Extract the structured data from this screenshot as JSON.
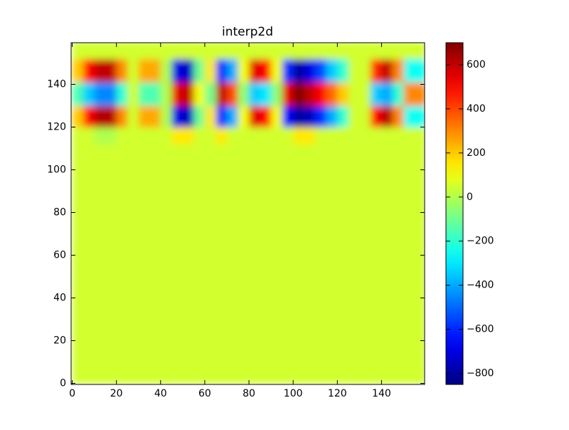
{
  "chart_data": {
    "type": "heatmap",
    "title": "interp2d",
    "colormap": "jet",
    "x_edges": [
      0,
      5,
      10,
      15,
      20,
      25,
      30,
      35,
      40,
      45,
      50,
      55,
      60,
      65,
      70,
      75,
      80,
      85,
      90,
      95,
      100,
      105,
      110,
      115,
      120,
      125,
      130,
      135,
      140,
      145,
      150,
      155,
      160
    ],
    "y_edges": [
      0,
      112,
      120,
      130,
      141,
      152,
      160
    ],
    "z": [
      [
        50,
        50,
        50,
        50,
        50,
        50,
        50,
        50,
        50,
        50,
        50,
        50,
        50,
        50,
        50,
        50,
        50,
        50,
        50,
        50,
        50,
        50,
        50,
        50,
        50,
        50,
        50,
        50,
        50,
        50,
        50,
        50
      ],
      [
        50,
        50,
        0,
        0,
        50,
        50,
        50,
        50,
        50,
        150,
        150,
        50,
        50,
        150,
        50,
        50,
        50,
        50,
        50,
        50,
        150,
        150,
        50,
        50,
        50,
        50,
        50,
        50,
        50,
        50,
        50,
        50
      ],
      [
        200,
        500,
        620,
        620,
        300,
        50,
        250,
        250,
        0,
        -700,
        -750,
        -100,
        150,
        -600,
        -400,
        100,
        550,
        500,
        100,
        -650,
        -800,
        -750,
        -600,
        -400,
        -200,
        50,
        50,
        500,
        620,
        300,
        -250,
        -250
      ],
      [
        -150,
        -350,
        -450,
        -450,
        -200,
        50,
        -150,
        -150,
        0,
        550,
        600,
        100,
        -100,
        600,
        400,
        -50,
        -350,
        -300,
        -50,
        550,
        700,
        600,
        500,
        350,
        200,
        50,
        50,
        -350,
        -400,
        -200,
        300,
        300
      ],
      [
        200,
        500,
        600,
        600,
        300,
        50,
        250,
        250,
        0,
        -700,
        -750,
        -100,
        150,
        -600,
        -400,
        100,
        550,
        500,
        100,
        -600,
        -800,
        -700,
        -550,
        -350,
        -200,
        50,
        50,
        450,
        600,
        300,
        -250,
        -250
      ],
      [
        50,
        50,
        50,
        50,
        50,
        50,
        50,
        50,
        50,
        50,
        50,
        50,
        50,
        50,
        50,
        50,
        50,
        50,
        50,
        50,
        50,
        50,
        50,
        50,
        50,
        50,
        50,
        50,
        50,
        50,
        50,
        50
      ]
    ],
    "xlim": [
      -0.5,
      159.5
    ],
    "ylim": [
      -0.5,
      159.5
    ],
    "xticks": [
      0,
      20,
      40,
      60,
      80,
      100,
      120,
      140
    ],
    "yticks": [
      0,
      20,
      40,
      60,
      80,
      100,
      120,
      140
    ],
    "vlim": [
      -850,
      700
    ],
    "colorbar_ticks": [
      {
        "value": -800,
        "label": "−800"
      },
      {
        "value": -600,
        "label": "−600"
      },
      {
        "value": -400,
        "label": "−400"
      },
      {
        "value": -200,
        "label": "−200"
      },
      0,
      200,
      400,
      600
    ]
  }
}
